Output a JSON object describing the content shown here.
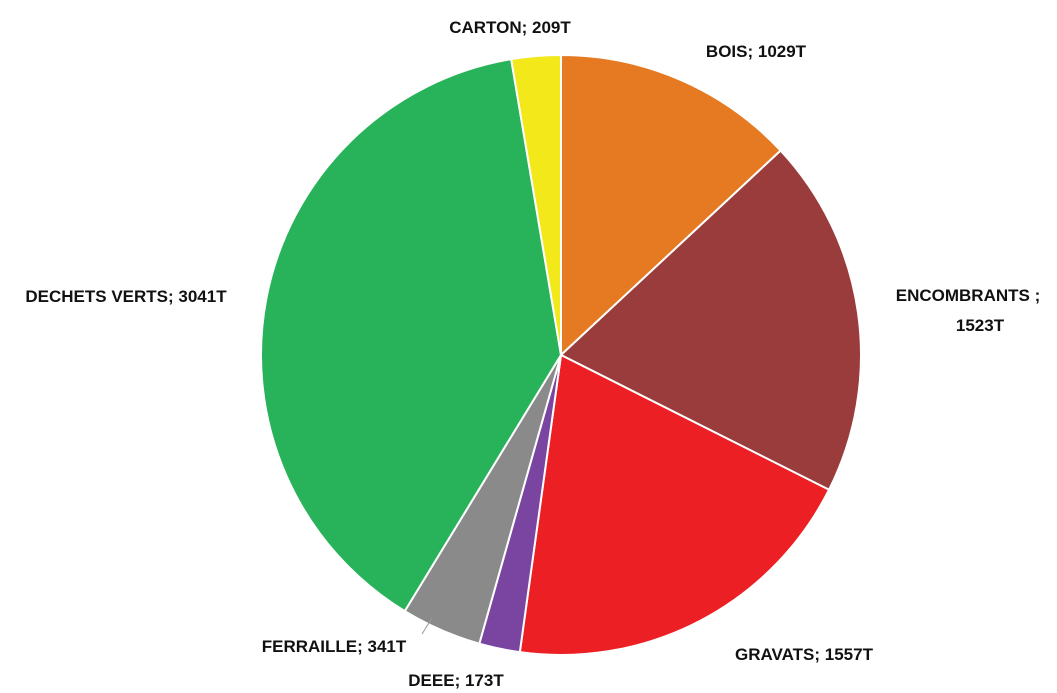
{
  "chart_data": {
    "type": "pie",
    "unit": "T",
    "start_angle_deg": 0,
    "direction": "clockwise",
    "slices": [
      {
        "name": "BOIS",
        "value": 1029,
        "color": "#E57A22",
        "label": "BOIS; 1029T"
      },
      {
        "name": "ENCOMBRANTS",
        "value": 1523,
        "color": "#9A3C3C",
        "label_lines": [
          "ENCOMBRANTS ;",
          "1523T"
        ]
      },
      {
        "name": "GRAVATS",
        "value": 1557,
        "color": "#EC2024",
        "label": "GRAVATS; 1557T"
      },
      {
        "name": "DEEE",
        "value": 173,
        "color": "#7A45A0",
        "label": "DEEE; 173T"
      },
      {
        "name": "FERRAILLE",
        "value": 341,
        "color": "#8A8A8A",
        "label": "FERRAILLE; 341T"
      },
      {
        "name": "DECHETS VERTS",
        "value": 3041,
        "color": "#28B35B",
        "label": "DECHETS VERTS; 3041T"
      },
      {
        "name": "CARTON",
        "value": 209,
        "color": "#F2E81A",
        "label": "CARTON; 209T"
      }
    ]
  }
}
